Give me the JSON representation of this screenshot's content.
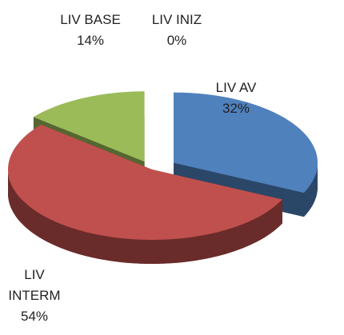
{
  "chart_data": {
    "type": "pie",
    "categories": [
      "LIV AV",
      "LIV INTERM",
      "LIV BASE",
      "LIV INIZ"
    ],
    "values": [
      32,
      54,
      14,
      0
    ],
    "value_labels": [
      "32%",
      "54%",
      "14%",
      "0%"
    ],
    "colors": [
      "#4f81bd",
      "#c0504d",
      "#9bbb59",
      "#8064a2"
    ]
  }
}
